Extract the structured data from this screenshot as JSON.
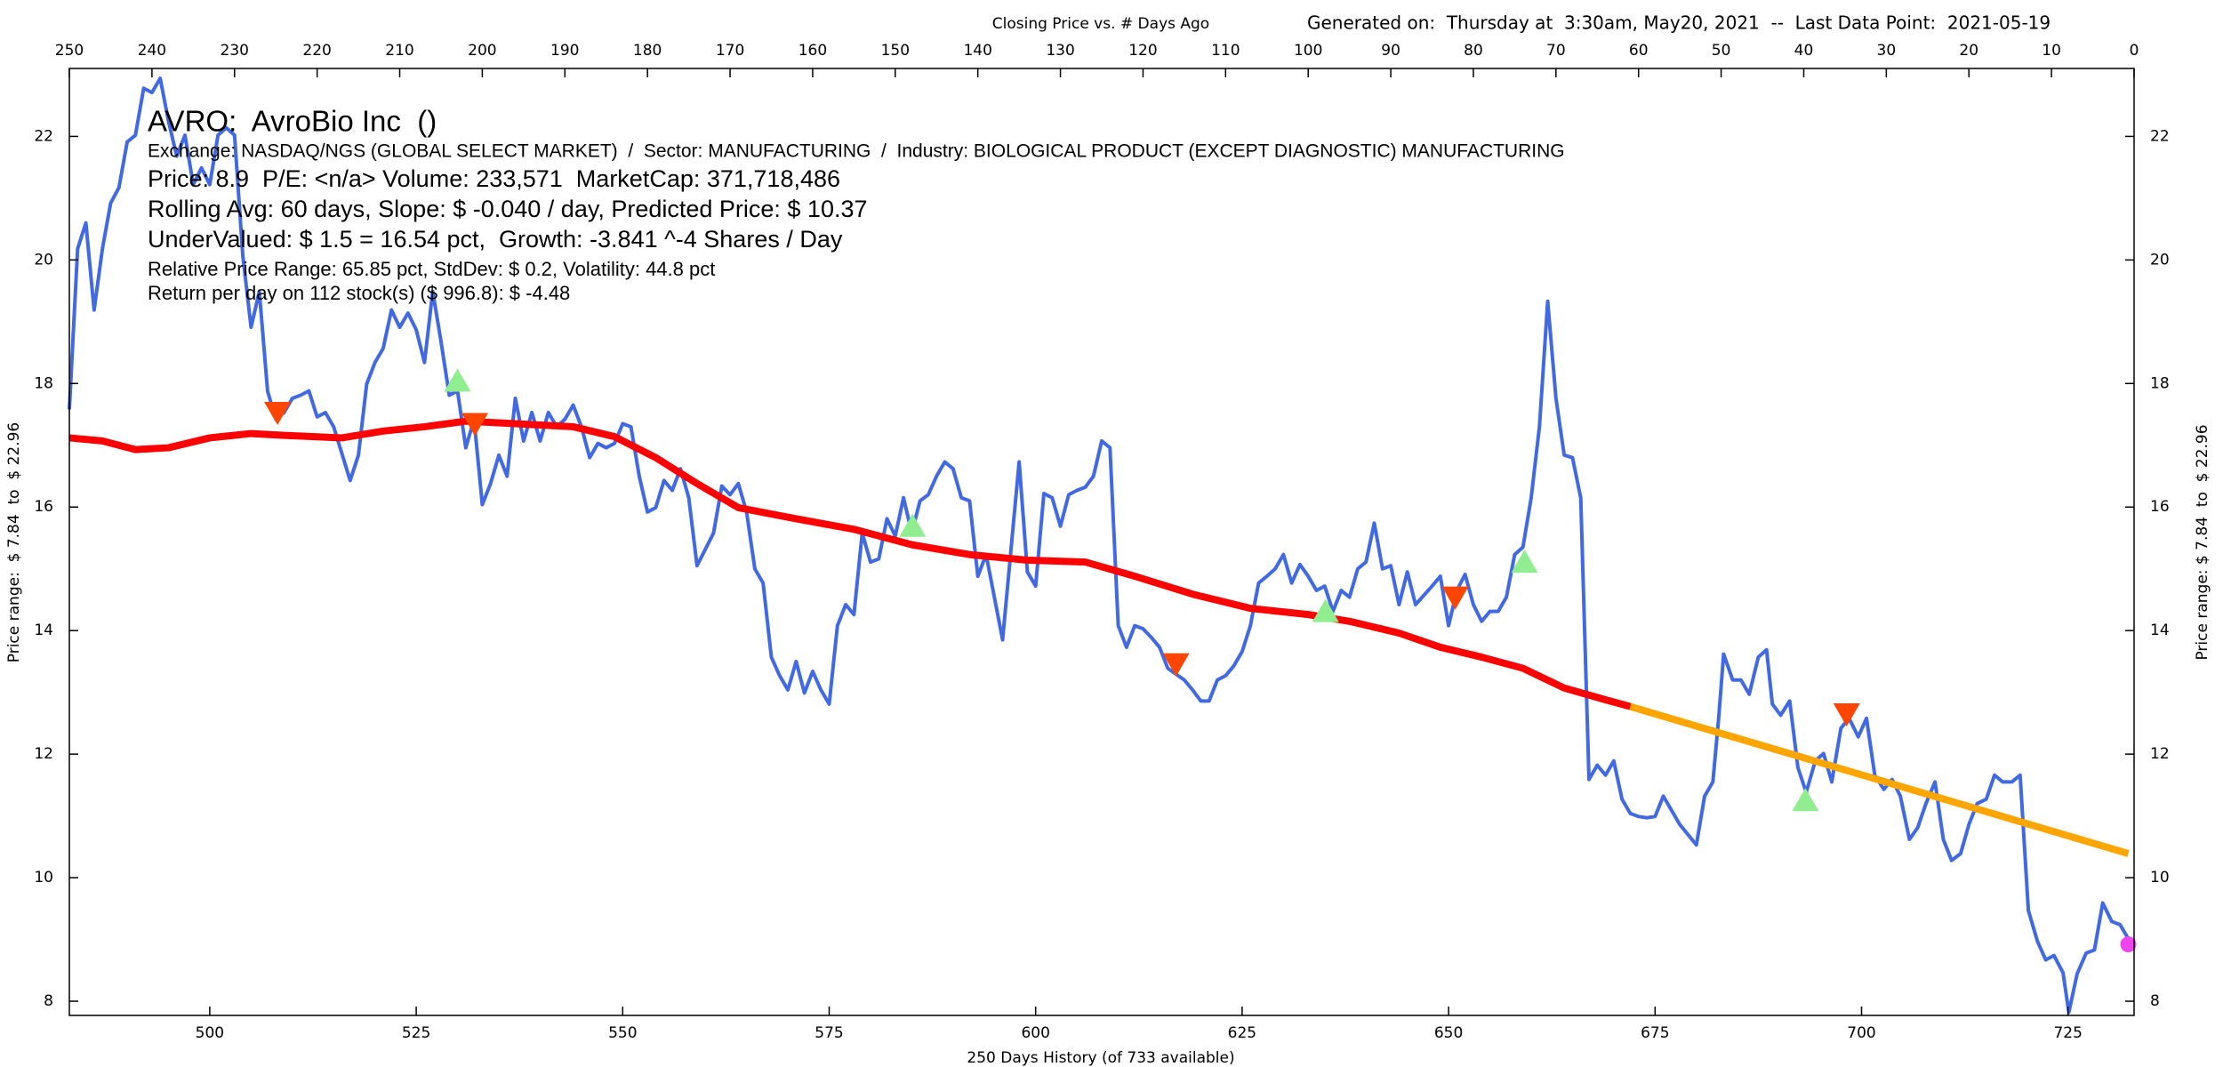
{
  "chart_data": {
    "type": "line",
    "title": "Closing Price vs. # Days Ago",
    "subtitle": "Generated on:  Thursday at  3:30am, May20, 2021  --  Last Data Point:  2021-05-19",
    "info": [
      "AVRO:  AvroBio Inc  ()",
      "Exchange: NASDAQ/NGS (GLOBAL SELECT MARKET)  /  Sector: MANUFACTURING  /  Industry: BIOLOGICAL PRODUCT (EXCEPT DIAGNOSTIC) MANUFACTURING",
      "Price: 8.9  P/E: <n/a> Volume: 233,571  MarketCap: 371,718,486",
      "Rolling Avg: 60 days, Slope: $ -0.040 / day, Predicted Price: $ 10.37",
      "UnderValued: $ 1.5 = 16.54 pct,  Growth: -3.841 ^-4 Shares / Day",
      "Relative Price Range: 65.85 pct, StdDev: $ 0.2, Volatility: 44.8 pct",
      "Return per day on 112 stock(s) ($ 996.8): $ -4.48"
    ],
    "xlabel": "250 Days History (of 733 available)",
    "ylabel": "Price range:  $ 7.84  to  $ 22.96",
    "y2label": "Price range: $ 7.84  to  $ 22.96",
    "xlim": [
      483,
      733
    ],
    "xticks": [
      500,
      525,
      550,
      575,
      600,
      625,
      650,
      675,
      700,
      725
    ],
    "x2lim": [
      250,
      0
    ],
    "x2ticks": [
      250,
      240,
      230,
      220,
      210,
      200,
      190,
      180,
      170,
      160,
      150,
      140,
      130,
      120,
      110,
      100,
      90,
      80,
      70,
      60,
      50,
      40,
      30,
      20,
      10,
      0
    ],
    "ylim": [
      7.77,
      23.1
    ],
    "yticks": [
      8,
      10,
      12,
      14,
      16,
      18,
      20,
      22
    ],
    "y2lim": [
      7.77,
      23.1
    ],
    "y2ticks": [
      8,
      10,
      12,
      14,
      16,
      18,
      20,
      22
    ],
    "grid": false,
    "series": [
      {
        "color": "#4169e1",
        "x": [
          483,
          484,
          485,
          486,
          487,
          488,
          489,
          490,
          491,
          492,
          493,
          494,
          495,
          496,
          497,
          498,
          499,
          500,
          501,
          502,
          503,
          504,
          505,
          506,
          507,
          508,
          509,
          510,
          511,
          512,
          513,
          514,
          515,
          517,
          518,
          519,
          520,
          521,
          522,
          523,
          524,
          525,
          526,
          527,
          528,
          529,
          530,
          531,
          532,
          533,
          534,
          535,
          536,
          537,
          538,
          539,
          540,
          541,
          542,
          543,
          544,
          545,
          546,
          547,
          548,
          549,
          550,
          551,
          552,
          553,
          554,
          555,
          556,
          557,
          558,
          559,
          561,
          562,
          563,
          564,
          565,
          566,
          567,
          568,
          569,
          570,
          571,
          572,
          573,
          574,
          575,
          576,
          577,
          578,
          579,
          580,
          581,
          582,
          583,
          584,
          585,
          586,
          587,
          588,
          589,
          590,
          591,
          592,
          593,
          594,
          595,
          596,
          598,
          599,
          600,
          601,
          602,
          603,
          604,
          605,
          606,
          607,
          608,
          609,
          610,
          611,
          612,
          613,
          614,
          615,
          616,
          618,
          619,
          620,
          621,
          622,
          623,
          624,
          625,
          626,
          627,
          628,
          629,
          630,
          631,
          632,
          633,
          634,
          635,
          636,
          637,
          638,
          639,
          640,
          641,
          642,
          643,
          644,
          645,
          646,
          648,
          649,
          650,
          651,
          652,
          653,
          654,
          655,
          656,
          657,
          658,
          659,
          660,
          661,
          662,
          663,
          664,
          665,
          666,
          667,
          668,
          669,
          670,
          671,
          672,
          673,
          674,
          675,
          676,
          677,
          678,
          680,
          681,
          682,
          682.7,
          683.3,
          684.4,
          685.4,
          686.4,
          687.5,
          688.5,
          689.2,
          690.2,
          691.3,
          692.3,
          693.3,
          694.4,
          695.4,
          696.4,
          697.5,
          698.5,
          699.6,
          700.6,
          701.6,
          702.7,
          703.7,
          704.7,
          705.8,
          706.8,
          707.8,
          708.9,
          709.9,
          710.9,
          712,
          713,
          714,
          715.1,
          716.1,
          717.1,
          718.2,
          719.2,
          720.2,
          721.3,
          722.3,
          723.3,
          724.4,
          725.1,
          726.1,
          727.2,
          728.2,
          729.2,
          730.3,
          731.3,
          732.3
        ],
        "values": [
          17.58,
          20.18,
          20.6,
          19.19,
          20.18,
          20.92,
          21.17,
          21.91,
          22.02,
          22.78,
          22.71,
          22.94,
          22.25,
          21.68,
          22.02,
          21.22,
          21.49,
          21.22,
          22.02,
          22.14,
          22.02,
          20.07,
          18.91,
          19.49,
          17.88,
          17.42,
          17.53,
          17.76,
          17.81,
          17.88,
          17.46,
          17.53,
          17.3,
          16.43,
          16.84,
          17.99,
          18.34,
          18.57,
          19.19,
          18.91,
          19.14,
          18.87,
          18.34,
          19.49,
          18.68,
          17.81,
          17.88,
          16.96,
          17.42,
          16.04,
          16.38,
          16.84,
          16.5,
          17.76,
          17.07,
          17.53,
          17.07,
          17.53,
          17.3,
          17.42,
          17.65,
          17.3,
          16.8,
          17.03,
          16.96,
          17.03,
          17.35,
          17.3,
          16.5,
          15.92,
          15.99,
          16.43,
          16.27,
          16.62,
          16.15,
          15.05,
          15.58,
          16.34,
          16.2,
          16.38,
          15.92,
          15.0,
          14.77,
          13.57,
          13.27,
          13.04,
          13.5,
          12.99,
          13.34,
          13.04,
          12.81,
          14.08,
          14.42,
          14.26,
          15.58,
          15.11,
          15.16,
          15.81,
          15.53,
          16.15,
          15.58,
          16.1,
          16.2,
          16.5,
          16.73,
          16.62,
          16.15,
          16.1,
          14.88,
          15.23,
          14.54,
          13.85,
          16.73,
          14.95,
          14.72,
          16.22,
          16.15,
          15.69,
          16.2,
          16.27,
          16.32,
          16.5,
          17.07,
          16.96,
          14.08,
          13.73,
          14.08,
          14.03,
          13.89,
          13.73,
          13.39,
          13.2,
          13.04,
          12.86,
          12.86,
          13.2,
          13.27,
          13.43,
          13.66,
          14.08,
          14.77,
          14.88,
          15.0,
          15.23,
          14.77,
          15.07,
          14.88,
          14.65,
          14.72,
          14.31,
          14.65,
          14.54,
          15.0,
          15.11,
          15.74,
          15.0,
          15.05,
          14.42,
          14.95,
          14.42,
          14.72,
          14.88,
          14.08,
          14.65,
          14.91,
          14.42,
          14.15,
          14.31,
          14.31,
          14.54,
          15.23,
          15.35,
          16.15,
          17.3,
          19.33,
          17.76,
          16.84,
          16.8,
          16.15,
          11.59,
          11.82,
          11.66,
          11.89,
          11.27,
          11.04,
          10.99,
          10.97,
          10.99,
          11.32,
          11.09,
          10.86,
          10.53,
          11.32,
          11.55,
          12.58,
          13.62,
          13.2,
          13.2,
          12.97,
          13.57,
          13.69,
          12.81,
          12.63,
          12.86,
          11.78,
          11.38,
          11.89,
          12.01,
          11.55,
          12.42,
          12.58,
          12.28,
          12.58,
          11.66,
          11.43,
          11.59,
          11.32,
          10.62,
          10.81,
          11.2,
          11.55,
          10.62,
          10.28,
          10.39,
          10.86,
          11.2,
          11.27,
          11.66,
          11.55,
          11.55,
          11.66,
          9.47,
          8.97,
          8.67,
          8.74,
          8.46,
          7.82,
          8.44,
          8.78,
          8.83,
          9.59,
          9.29,
          9.24,
          9.01
        ]
      },
      {
        "color": "#ff0000",
        "x": [
          483,
          487,
          491,
          495,
          500,
          505,
          509,
          516,
          521,
          526,
          531,
          537,
          544,
          549,
          554,
          559,
          564,
          571,
          578,
          585,
          592,
          599,
          606,
          612,
          619,
          626,
          633,
          638,
          644,
          649,
          654,
          659,
          664,
          669,
          672
        ],
        "values": [
          17.12,
          17.07,
          16.93,
          16.96,
          17.12,
          17.19,
          17.16,
          17.12,
          17.23,
          17.3,
          17.39,
          17.35,
          17.3,
          17.14,
          16.8,
          16.38,
          15.99,
          15.81,
          15.64,
          15.39,
          15.23,
          15.14,
          15.11,
          14.88,
          14.59,
          14.36,
          14.26,
          14.15,
          13.96,
          13.73,
          13.57,
          13.39,
          13.07,
          12.88,
          12.77
        ]
      },
      {
        "color": "#ffa500",
        "x": [
          672,
          732.3
        ],
        "values": [
          12.77,
          10.39
        ]
      },
      {
        "color": "#90ee90",
        "marker": "triangle-up",
        "x": [
          530,
          585.1,
          635.1,
          659.2,
          693.2
        ],
        "values": [
          18.04,
          15.69,
          14.31,
          15.11,
          11.25
        ]
      },
      {
        "color": "#ff4500",
        "marker": "triangle-down",
        "x": [
          508.2,
          532.1,
          617,
          650.8,
          698.2
        ],
        "values": [
          17.53,
          17.35,
          13.46,
          14.54,
          12.65
        ]
      },
      {
        "color": "#ee44ee",
        "marker": "circle",
        "x": [
          732.3
        ],
        "values": [
          8.92
        ]
      }
    ]
  }
}
